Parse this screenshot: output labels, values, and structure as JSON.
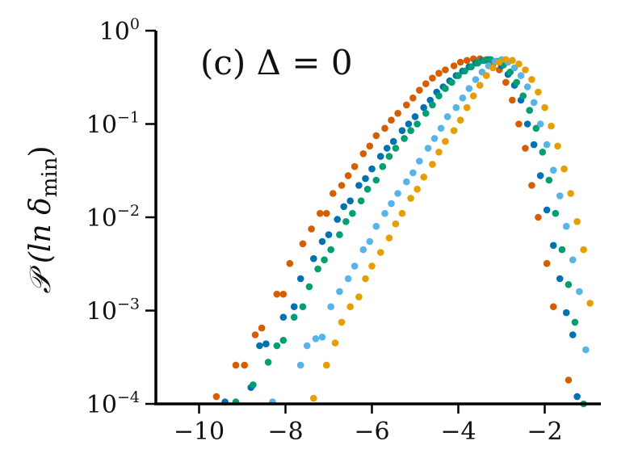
{
  "chart_data": {
    "type": "scatter",
    "annotation": "(c) Δ = 0",
    "ylabel": "𝒫 (ln δ",
    "ylabel_sub": "min",
    "ylabel_close": ")",
    "xlim": [
      -11,
      -0.7
    ],
    "ylim": [
      0.0001,
      1
    ],
    "yscale": "log",
    "x_ticks": [
      -10,
      -8,
      -6,
      -4,
      -2
    ],
    "x_tick_labels": [
      "−10",
      "−8",
      "−6",
      "−4",
      "−2"
    ],
    "y_ticks": [
      0.0001,
      0.001,
      0.01,
      0.1,
      1
    ],
    "y_tick_labels": [
      {
        "base": "10",
        "exp": "−4"
      },
      {
        "base": "10",
        "exp": "−3"
      },
      {
        "base": "10",
        "exp": "−2"
      },
      {
        "base": "10",
        "exp": "−1"
      },
      {
        "base": "10",
        "exp": "0"
      }
    ],
    "grid": false,
    "series": [
      {
        "color": "#D55E00",
        "points": [
          [
            -9.6,
            0.00012
          ],
          [
            -9.15,
            0.00026
          ],
          [
            -8.95,
            0.00026
          ],
          [
            -8.7,
            0.00055
          ],
          [
            -8.55,
            0.00065
          ],
          [
            -8.2,
            0.0015
          ],
          [
            -8.05,
            0.0015
          ],
          [
            -7.9,
            0.0032
          ],
          [
            -7.6,
            0.0052
          ],
          [
            -7.4,
            0.0075
          ],
          [
            -7.2,
            0.011
          ],
          [
            -7.05,
            0.011
          ],
          [
            -6.9,
            0.018
          ],
          [
            -6.7,
            0.022
          ],
          [
            -6.55,
            0.028
          ],
          [
            -6.4,
            0.035
          ],
          [
            -6.2,
            0.048
          ],
          [
            -6.05,
            0.058
          ],
          [
            -5.9,
            0.075
          ],
          [
            -5.7,
            0.09
          ],
          [
            -5.55,
            0.11
          ],
          [
            -5.4,
            0.13
          ],
          [
            -5.2,
            0.16
          ],
          [
            -5.05,
            0.19
          ],
          [
            -4.9,
            0.23
          ],
          [
            -4.75,
            0.27
          ],
          [
            -4.6,
            0.31
          ],
          [
            -4.45,
            0.35
          ],
          [
            -4.3,
            0.38
          ],
          [
            -4.1,
            0.42
          ],
          [
            -3.95,
            0.46
          ],
          [
            -3.8,
            0.48
          ],
          [
            -3.65,
            0.5
          ],
          [
            -3.5,
            0.5
          ],
          [
            -3.35,
            0.49
          ],
          [
            -3.2,
            0.44
          ],
          [
            -3.05,
            0.38
          ],
          [
            -2.9,
            0.28
          ],
          [
            -2.75,
            0.18
          ],
          [
            -2.6,
            0.1
          ],
          [
            -2.45,
            0.055
          ],
          [
            -2.3,
            0.022
          ],
          [
            -2.15,
            0.01
          ],
          [
            -1.95,
            0.0032
          ],
          [
            -1.8,
            0.0011
          ],
          [
            -1.45,
            0.00018
          ]
        ]
      },
      {
        "color": "#0072B2",
        "points": [
          [
            -9.4,
            0.000105
          ],
          [
            -8.8,
            0.00015
          ],
          [
            -8.6,
            0.00042
          ],
          [
            -8.45,
            0.00044
          ],
          [
            -8.05,
            0.00085
          ],
          [
            -7.8,
            0.0011
          ],
          [
            -7.65,
            0.0022
          ],
          [
            -7.35,
            0.0036
          ],
          [
            -7.15,
            0.0055
          ],
          [
            -7.0,
            0.0065
          ],
          [
            -6.8,
            0.0095
          ],
          [
            -6.65,
            0.013
          ],
          [
            -6.5,
            0.015
          ],
          [
            -6.3,
            0.022
          ],
          [
            -6.15,
            0.026
          ],
          [
            -6.0,
            0.033
          ],
          [
            -5.8,
            0.045
          ],
          [
            -5.65,
            0.055
          ],
          [
            -5.5,
            0.065
          ],
          [
            -5.3,
            0.085
          ],
          [
            -5.15,
            0.1
          ],
          [
            -5.0,
            0.12
          ],
          [
            -4.8,
            0.15
          ],
          [
            -4.65,
            0.18
          ],
          [
            -4.5,
            0.22
          ],
          [
            -4.35,
            0.25
          ],
          [
            -4.2,
            0.29
          ],
          [
            -4.05,
            0.33
          ],
          [
            -3.9,
            0.37
          ],
          [
            -3.75,
            0.41
          ],
          [
            -3.6,
            0.45
          ],
          [
            -3.45,
            0.48
          ],
          [
            -3.3,
            0.49
          ],
          [
            -3.15,
            0.47
          ],
          [
            -3.0,
            0.42
          ],
          [
            -2.85,
            0.34
          ],
          [
            -2.7,
            0.26
          ],
          [
            -2.55,
            0.18
          ],
          [
            -2.4,
            0.1
          ],
          [
            -2.25,
            0.06
          ],
          [
            -2.1,
            0.028
          ],
          [
            -1.95,
            0.012
          ],
          [
            -1.8,
            0.005
          ],
          [
            -1.65,
            0.0022
          ],
          [
            -1.5,
            0.00095
          ],
          [
            -1.35,
            0.00055
          ],
          [
            -1.25,
            0.00012
          ]
        ]
      },
      {
        "color": "#009E73",
        "points": [
          [
            -9.15,
            0.000105
          ],
          [
            -8.75,
            0.00016
          ],
          [
            -8.4,
            0.00028
          ],
          [
            -8.2,
            0.00042
          ],
          [
            -8.05,
            0.00048
          ],
          [
            -7.8,
            0.00085
          ],
          [
            -7.6,
            0.0011
          ],
          [
            -7.45,
            0.0018
          ],
          [
            -7.25,
            0.0028
          ],
          [
            -7.1,
            0.0035
          ],
          [
            -6.95,
            0.0045
          ],
          [
            -6.75,
            0.0065
          ],
          [
            -6.6,
            0.009
          ],
          [
            -6.45,
            0.011
          ],
          [
            -6.25,
            0.015
          ],
          [
            -6.1,
            0.02
          ],
          [
            -5.9,
            0.025
          ],
          [
            -5.75,
            0.035
          ],
          [
            -5.6,
            0.045
          ],
          [
            -5.45,
            0.055
          ],
          [
            -5.25,
            0.07
          ],
          [
            -5.1,
            0.085
          ],
          [
            -4.95,
            0.1
          ],
          [
            -4.75,
            0.13
          ],
          [
            -4.6,
            0.16
          ],
          [
            -4.45,
            0.2
          ],
          [
            -4.3,
            0.24
          ],
          [
            -4.15,
            0.28
          ],
          [
            -4.0,
            0.33
          ],
          [
            -3.85,
            0.37
          ],
          [
            -3.7,
            0.41
          ],
          [
            -3.55,
            0.45
          ],
          [
            -3.4,
            0.48
          ],
          [
            -3.25,
            0.49
          ],
          [
            -3.1,
            0.47
          ],
          [
            -2.95,
            0.43
          ],
          [
            -2.8,
            0.36
          ],
          [
            -2.65,
            0.28
          ],
          [
            -2.5,
            0.2
          ],
          [
            -2.35,
            0.14
          ],
          [
            -2.2,
            0.09
          ],
          [
            -2.05,
            0.05
          ],
          [
            -1.9,
            0.025
          ],
          [
            -1.75,
            0.011
          ],
          [
            -1.6,
            0.0045
          ],
          [
            -1.45,
            0.0019
          ],
          [
            -1.3,
            0.00075
          ],
          [
            -1.1,
            0.0001
          ]
        ]
      },
      {
        "color": "#56B4E9",
        "points": [
          [
            -8.3,
            0.000105
          ],
          [
            -7.65,
            0.00026
          ],
          [
            -7.5,
            0.00042
          ],
          [
            -7.3,
            0.0005
          ],
          [
            -7.15,
            0.00052
          ],
          [
            -6.95,
            0.0011
          ],
          [
            -6.75,
            0.0016
          ],
          [
            -6.55,
            0.0022
          ],
          [
            -6.4,
            0.003
          ],
          [
            -6.2,
            0.0045
          ],
          [
            -6.05,
            0.0055
          ],
          [
            -5.9,
            0.008
          ],
          [
            -5.7,
            0.011
          ],
          [
            -5.55,
            0.014
          ],
          [
            -5.4,
            0.018
          ],
          [
            -5.2,
            0.024
          ],
          [
            -5.05,
            0.03
          ],
          [
            -4.9,
            0.04
          ],
          [
            -4.7,
            0.055
          ],
          [
            -4.55,
            0.07
          ],
          [
            -4.4,
            0.09
          ],
          [
            -4.25,
            0.12
          ],
          [
            -4.05,
            0.15
          ],
          [
            -3.9,
            0.19
          ],
          [
            -3.75,
            0.24
          ],
          [
            -3.6,
            0.3
          ],
          [
            -3.45,
            0.36
          ],
          [
            -3.3,
            0.42
          ],
          [
            -3.15,
            0.47
          ],
          [
            -3.0,
            0.49
          ],
          [
            -2.85,
            0.46
          ],
          [
            -2.7,
            0.4
          ],
          [
            -2.55,
            0.33
          ],
          [
            -2.4,
            0.25
          ],
          [
            -2.25,
            0.17
          ],
          [
            -2.1,
            0.1
          ],
          [
            -1.95,
            0.06
          ],
          [
            -1.8,
            0.032
          ],
          [
            -1.65,
            0.017
          ],
          [
            -1.5,
            0.008
          ],
          [
            -1.35,
            0.0035
          ],
          [
            -1.2,
            0.0016
          ],
          [
            -1.05,
            0.00038
          ]
        ]
      },
      {
        "color": "#E69F00",
        "points": [
          [
            -7.35,
            0.000115
          ],
          [
            -7.05,
            0.00026
          ],
          [
            -6.85,
            0.00045
          ],
          [
            -6.7,
            0.00075
          ],
          [
            -6.5,
            0.0011
          ],
          [
            -6.3,
            0.0014
          ],
          [
            -6.15,
            0.0022
          ],
          [
            -6.0,
            0.003
          ],
          [
            -5.8,
            0.0042
          ],
          [
            -5.6,
            0.006
          ],
          [
            -5.45,
            0.0085
          ],
          [
            -5.3,
            0.011
          ],
          [
            -5.1,
            0.016
          ],
          [
            -4.95,
            0.02
          ],
          [
            -4.8,
            0.027
          ],
          [
            -4.6,
            0.037
          ],
          [
            -4.45,
            0.05
          ],
          [
            -4.3,
            0.065
          ],
          [
            -4.1,
            0.085
          ],
          [
            -3.95,
            0.11
          ],
          [
            -3.8,
            0.15
          ],
          [
            -3.65,
            0.2
          ],
          [
            -3.5,
            0.26
          ],
          [
            -3.35,
            0.33
          ],
          [
            -3.2,
            0.4
          ],
          [
            -3.05,
            0.46
          ],
          [
            -2.9,
            0.49
          ],
          [
            -2.75,
            0.48
          ],
          [
            -2.6,
            0.44
          ],
          [
            -2.45,
            0.38
          ],
          [
            -2.3,
            0.3
          ],
          [
            -2.15,
            0.22
          ],
          [
            -2.0,
            0.15
          ],
          [
            -1.85,
            0.095
          ],
          [
            -1.7,
            0.058
          ],
          [
            -1.55,
            0.033
          ],
          [
            -1.4,
            0.018
          ],
          [
            -1.25,
            0.009
          ],
          [
            -1.1,
            0.0045
          ],
          [
            -0.95,
            0.0012
          ]
        ]
      }
    ]
  }
}
